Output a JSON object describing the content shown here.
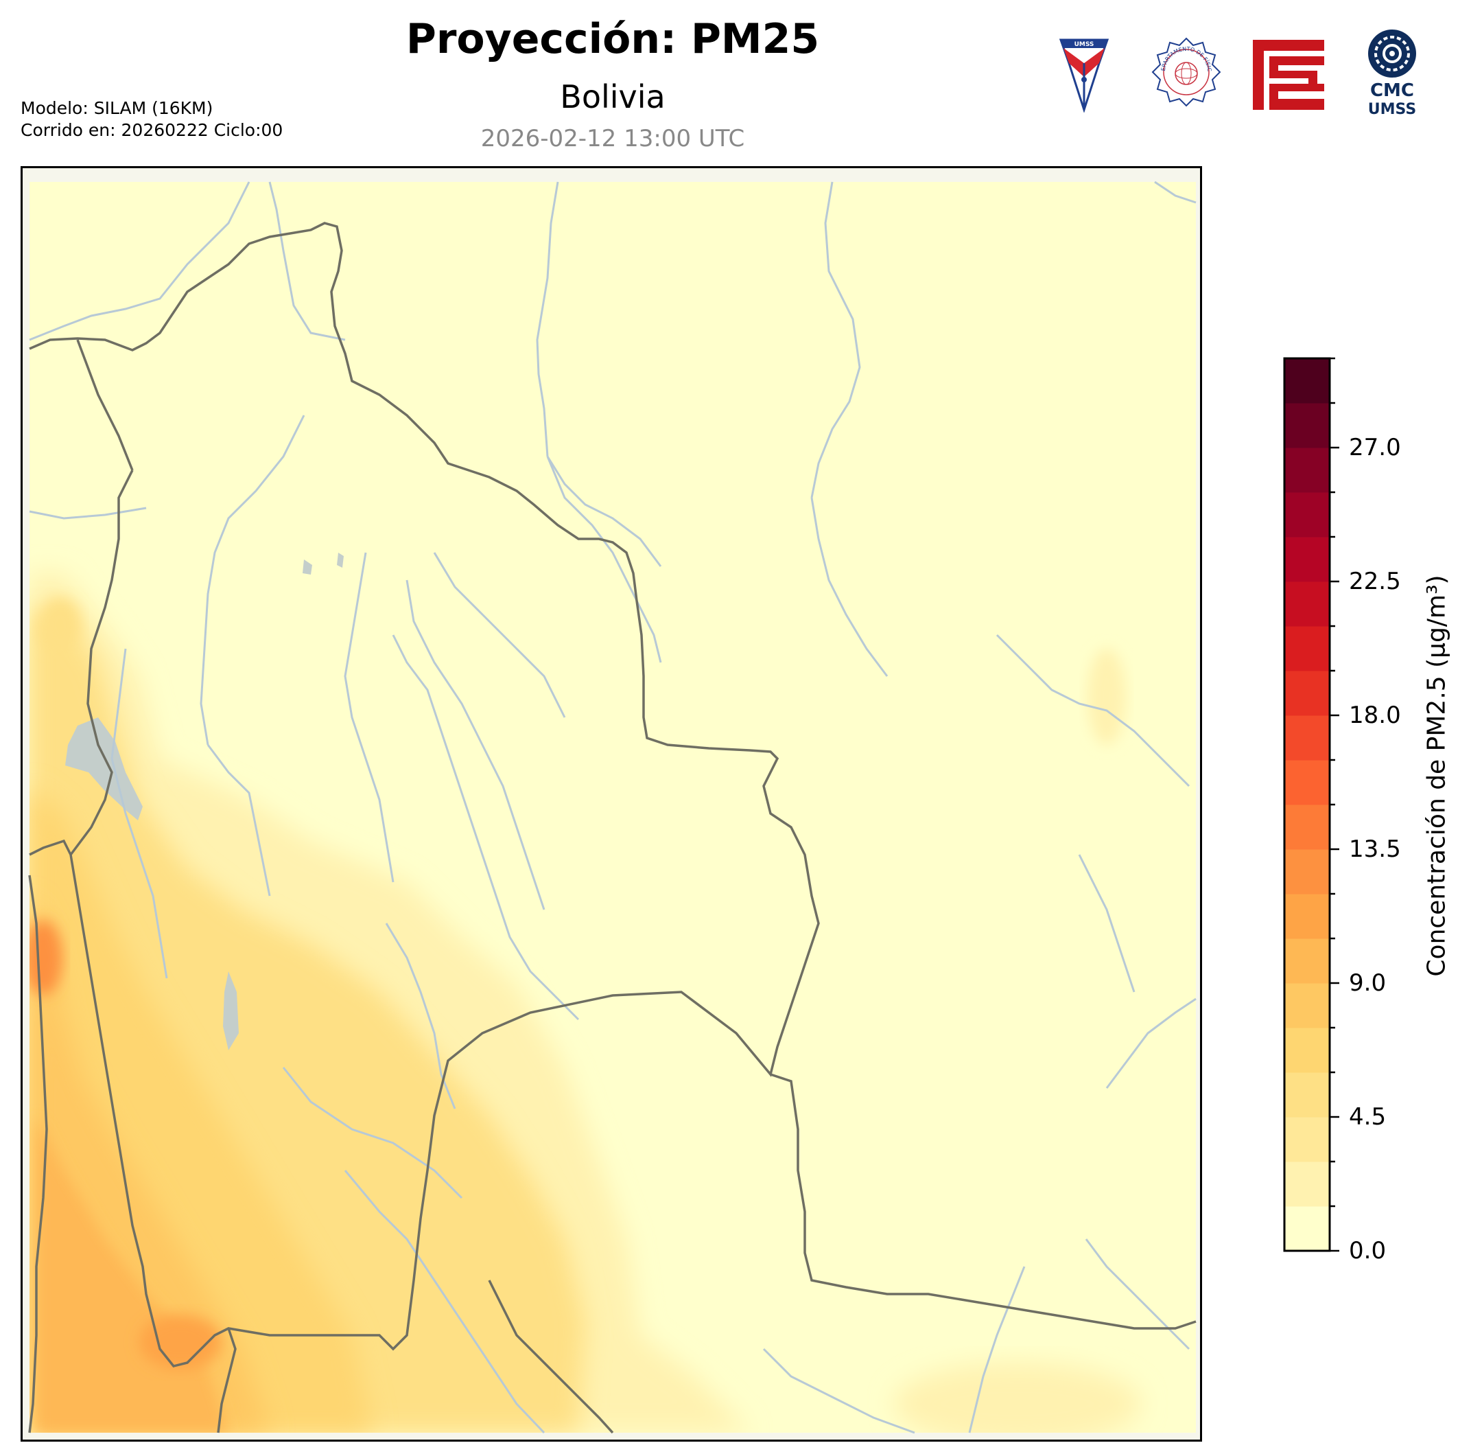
{
  "header": {
    "title": "Proyección: PM25",
    "subtitle": "Bolivia",
    "datetime": "2026-02-12 13:00 UTC",
    "model_line": "Modelo: SILAM (16KM)",
    "run_line": "Corrido en: 20260222 Ciclo:00"
  },
  "logos": {
    "umss_shield_text": "UMSS",
    "fisica_seal_text": "DEPARTAMENTO DE FÍSICA",
    "cmc_line1": "CMC",
    "cmc_line2": "UMSS"
  },
  "colorbar": {
    "label": "Concentración de PM2.5 (µg/m³)",
    "min": 0,
    "max": 30,
    "step": 1.5,
    "tick_labels": [
      "0.0",
      "4.5",
      "9.0",
      "13.5",
      "18.0",
      "22.5",
      "27.0"
    ],
    "colors": [
      "#ffffcc",
      "#fff2b0",
      "#ffe898",
      "#fee085",
      "#fed671",
      "#fec862",
      "#feb854",
      "#fea446",
      "#fd9140",
      "#fd7b37",
      "#fc6330",
      "#f34a2a",
      "#e83223",
      "#da1d1f",
      "#c70e21",
      "#b50525",
      "#9e0226",
      "#860125",
      "#6b0022",
      "#4e001d"
    ]
  },
  "map": {
    "lake_color": "#c4cecb",
    "river_color": "#b7c9d6",
    "border_color": "#6e6e62"
  }
}
